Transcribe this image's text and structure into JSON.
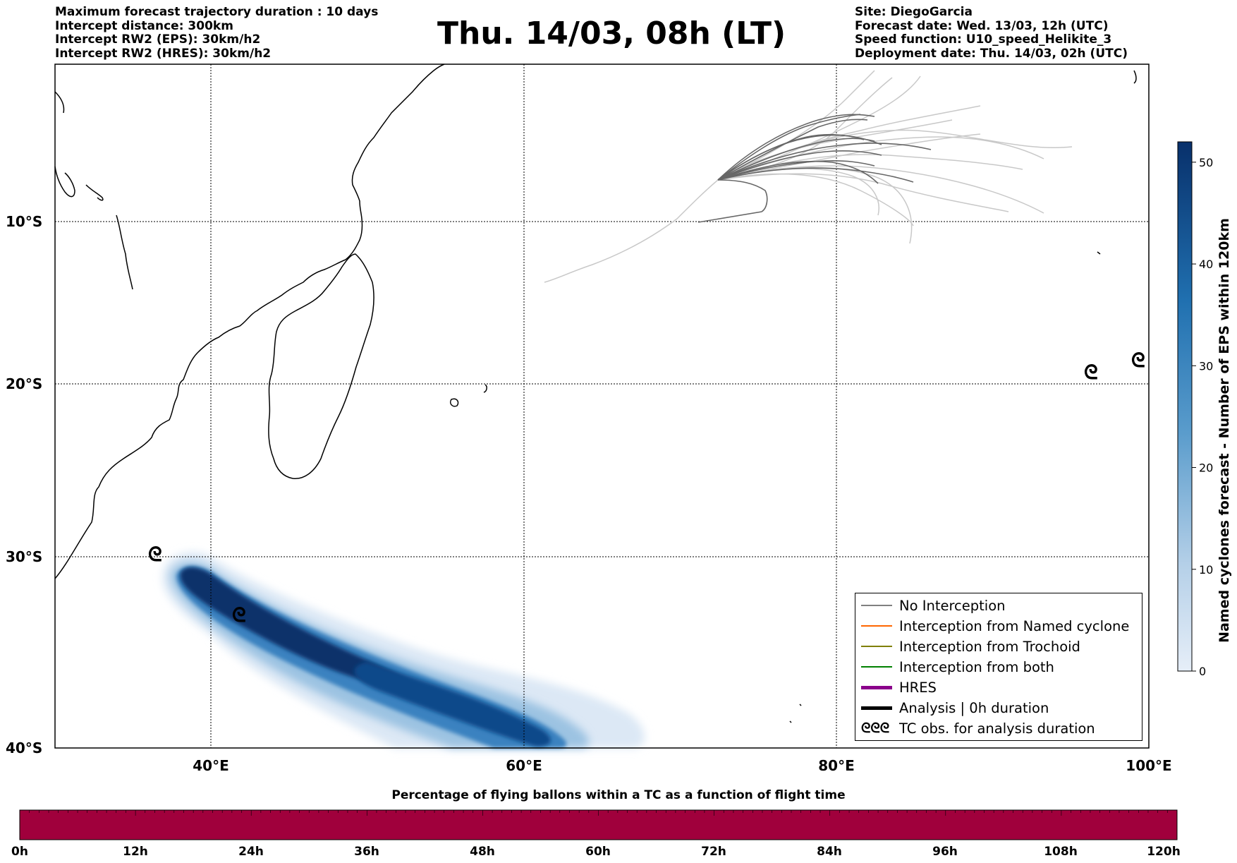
{
  "header_left": [
    "Maximum forecast trajectory duration : 10 days",
    "Intercept distance: 300km",
    "Intercept RW2 (EPS):  30km/h2",
    "Intercept RW2 (HRES): 30km/h2"
  ],
  "header_right": [
    "Site: DiegoGarcia",
    "Forecast date: Wed. 13/03, 12h (UTC)",
    "Speed function: U10_speed_Helikite_3",
    "Deployment date: Thu. 14/03, 02h (UTC)"
  ],
  "title": "Thu. 14/03, 08h (LT)",
  "map": {
    "lon_range": [
      30,
      100
    ],
    "lat_range": [
      -40,
      -1
    ],
    "lat_labels": [
      "10°S",
      "20°S",
      "30°S",
      "40°S"
    ],
    "lon_labels": [
      "40°E",
      "60°E",
      "80°E",
      "100°E"
    ]
  },
  "colorbar": {
    "label": "Named cyclones forecast - Number of EPS within 120km",
    "ticks": [
      "0",
      "10",
      "20",
      "30",
      "40",
      "50"
    ],
    "range": [
      0,
      52
    ],
    "colors": [
      "#e6eef8",
      "#08306b"
    ]
  },
  "legend": {
    "items": [
      {
        "label": "No Interception",
        "color": "#808080",
        "style": "thin"
      },
      {
        "label": "Interception from Named cyclone",
        "color": "#ff6600",
        "style": "thin"
      },
      {
        "label": "Interception from Trochoid",
        "color": "#808000",
        "style": "thin"
      },
      {
        "label": "Interception from both",
        "color": "#008000",
        "style": "thin"
      },
      {
        "label": "HRES",
        "color": "#8b008b",
        "style": "thick"
      },
      {
        "label": "Analysis | 0h duration",
        "color": "#000000",
        "style": "thick"
      },
      {
        "label": "TC obs. for analysis duration",
        "color": "#000000",
        "style": "symbol"
      }
    ],
    "symbol_text": "ᘓᘓᘓ"
  },
  "percentage_bar": {
    "title": "Percentage of flying ballons within a TC as a function of flight time",
    "color": "#a0003c",
    "hour_labels": [
      "0h",
      "12h",
      "24h",
      "36h",
      "48h",
      "60h",
      "72h",
      "84h",
      "96h",
      "108h",
      "120h"
    ]
  },
  "tc_obs_symbol": "ᘓ"
}
